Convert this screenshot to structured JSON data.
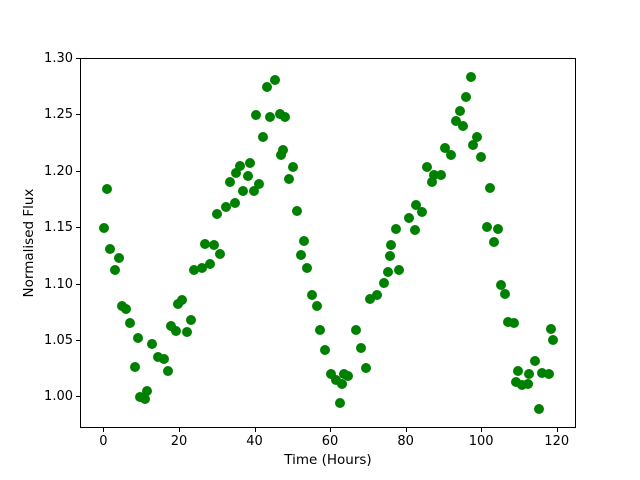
{
  "chart_data": {
    "type": "scatter",
    "title": "",
    "xlabel": "Time (Hours)",
    "ylabel": "Normalised Flux",
    "marker_color": "#008000",
    "grid": false,
    "legend": null,
    "xlim": [
      -6.2,
      125.1
    ],
    "ylim": [
      0.972,
      1.3
    ],
    "x_ticks": [
      0,
      20,
      40,
      60,
      80,
      100,
      120
    ],
    "x_tick_labels": [
      "0",
      "20",
      "40",
      "60",
      "80",
      "100",
      "120"
    ],
    "y_ticks": [
      1.0,
      1.05,
      1.1,
      1.15,
      1.2,
      1.25,
      1.3
    ],
    "y_tick_labels": [
      "1.00",
      "1.05",
      "1.10",
      "1.15",
      "1.20",
      "1.25",
      "1.30"
    ],
    "series": [
      {
        "name": "normalised-flux-vs-time",
        "points": [
          [
            0.0,
            1.15
          ],
          [
            0.7,
            1.185
          ],
          [
            1.6,
            1.132
          ],
          [
            2.9,
            1.113
          ],
          [
            3.8,
            1.124
          ],
          [
            4.6,
            1.081
          ],
          [
            5.7,
            1.078
          ],
          [
            6.9,
            1.066
          ],
          [
            8.1,
            1.027
          ],
          [
            9.0,
            1.053
          ],
          [
            9.5,
            1.0
          ],
          [
            10.8,
            0.999
          ],
          [
            11.3,
            1.006
          ],
          [
            12.5,
            1.047
          ],
          [
            14.3,
            1.036
          ],
          [
            15.7,
            1.034
          ],
          [
            16.9,
            1.023
          ],
          [
            17.5,
            1.063
          ],
          [
            19.0,
            1.059
          ],
          [
            19.4,
            1.083
          ],
          [
            20.5,
            1.086
          ],
          [
            21.9,
            1.058
          ],
          [
            22.9,
            1.069
          ],
          [
            23.7,
            1.113
          ],
          [
            25.8,
            1.115
          ],
          [
            26.7,
            1.136
          ],
          [
            27.9,
            1.118
          ],
          [
            28.9,
            1.135
          ],
          [
            29.8,
            1.163
          ],
          [
            30.7,
            1.127
          ],
          [
            32.2,
            1.169
          ],
          [
            33.3,
            1.191
          ],
          [
            34.6,
            1.172
          ],
          [
            34.8,
            1.199
          ],
          [
            35.9,
            1.205
          ],
          [
            36.6,
            1.183
          ],
          [
            38.0,
            1.196
          ],
          [
            38.5,
            1.208
          ],
          [
            39.5,
            1.183
          ],
          [
            40.1,
            1.25
          ],
          [
            41.0,
            1.189
          ],
          [
            42.1,
            1.231
          ],
          [
            43.1,
            1.275
          ],
          [
            43.9,
            1.249
          ],
          [
            45.1,
            1.281
          ],
          [
            46.5,
            1.251
          ],
          [
            46.7,
            1.215
          ],
          [
            47.3,
            1.219
          ],
          [
            47.9,
            1.249
          ],
          [
            48.9,
            1.194
          ],
          [
            50.0,
            1.204
          ],
          [
            51.0,
            1.165
          ],
          [
            52.1,
            1.126
          ],
          [
            52.8,
            1.139
          ],
          [
            53.7,
            1.115
          ],
          [
            54.9,
            1.091
          ],
          [
            56.2,
            1.081
          ],
          [
            57.1,
            1.06
          ],
          [
            58.4,
            1.042
          ],
          [
            60.0,
            1.021
          ],
          [
            61.3,
            1.015
          ],
          [
            62.4,
            0.995
          ],
          [
            62.9,
            1.012
          ],
          [
            63.4,
            1.021
          ],
          [
            64.6,
            1.019
          ],
          [
            66.7,
            1.06
          ],
          [
            67.8,
            1.044
          ],
          [
            69.3,
            1.026
          ],
          [
            70.4,
            1.087
          ],
          [
            72.1,
            1.091
          ],
          [
            74.1,
            1.101
          ],
          [
            75.1,
            1.111
          ],
          [
            75.7,
            1.125
          ],
          [
            75.8,
            1.135
          ],
          [
            77.2,
            1.149
          ],
          [
            78.1,
            1.113
          ],
          [
            80.6,
            1.159
          ],
          [
            82.3,
            1.148
          ],
          [
            82.5,
            1.171
          ],
          [
            84.2,
            1.164
          ],
          [
            85.3,
            1.204
          ],
          [
            86.6,
            1.191
          ],
          [
            87.3,
            1.197
          ],
          [
            89.1,
            1.197
          ],
          [
            90.2,
            1.221
          ],
          [
            91.7,
            1.215
          ],
          [
            93.0,
            1.245
          ],
          [
            94.2,
            1.254
          ],
          [
            94.8,
            1.241
          ],
          [
            95.7,
            1.266
          ],
          [
            97.0,
            1.284
          ],
          [
            97.6,
            1.224
          ],
          [
            98.5,
            1.231
          ],
          [
            99.7,
            1.213
          ],
          [
            101.2,
            1.151
          ],
          [
            102.0,
            1.186
          ],
          [
            103.1,
            1.138
          ],
          [
            104.2,
            1.149
          ],
          [
            105.0,
            1.1
          ],
          [
            106.0,
            1.092
          ],
          [
            106.9,
            1.067
          ],
          [
            108.5,
            1.066
          ],
          [
            109.0,
            1.014
          ],
          [
            109.6,
            1.023
          ],
          [
            110.6,
            1.011
          ],
          [
            112.1,
            1.012
          ],
          [
            112.4,
            1.021
          ],
          [
            114.0,
            1.032
          ],
          [
            115.1,
            0.99
          ],
          [
            115.9,
            1.022
          ],
          [
            117.6,
            1.021
          ],
          [
            118.2,
            1.061
          ],
          [
            118.8,
            1.051
          ]
        ]
      }
    ]
  }
}
